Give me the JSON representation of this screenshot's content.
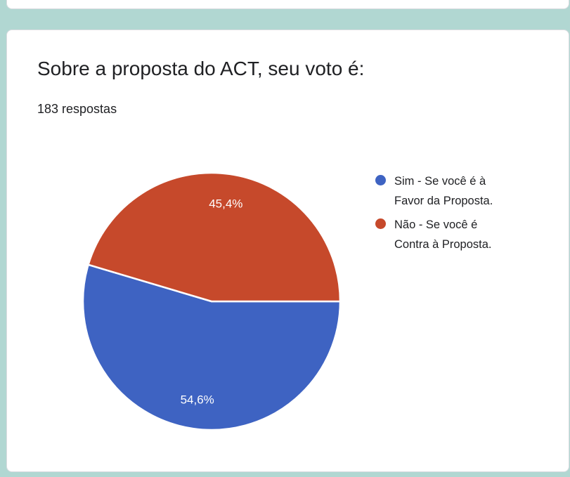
{
  "page": {
    "background_color": "#b1d7d2"
  },
  "card": {
    "question_title": "Sobre a proposta do ACT, seu voto é:",
    "responses_count": "183 respostas"
  },
  "chart_data": {
    "type": "pie",
    "title": "Sobre a proposta do ACT, seu voto é:",
    "responses_total": 183,
    "start_angle_deg": 0,
    "direction": "clockwise",
    "legend_position": "right",
    "slice_label_color": "#ffffff",
    "slice_border_color": "#ffffff",
    "categories": [
      "Sim - Se você é à Favor da Proposta.",
      "Não - Se você é Contra à Proposta."
    ],
    "values": [
      54.6,
      45.4
    ],
    "slices": [
      {
        "label": "Sim - Se você é à Favor da Proposta.",
        "percent": 54.6,
        "display": "54,6%",
        "color": "#3E63C2"
      },
      {
        "label": "Não - Se você é Contra à Proposta.",
        "percent": 45.4,
        "display": "45,4%",
        "color": "#C6492B"
      }
    ]
  }
}
